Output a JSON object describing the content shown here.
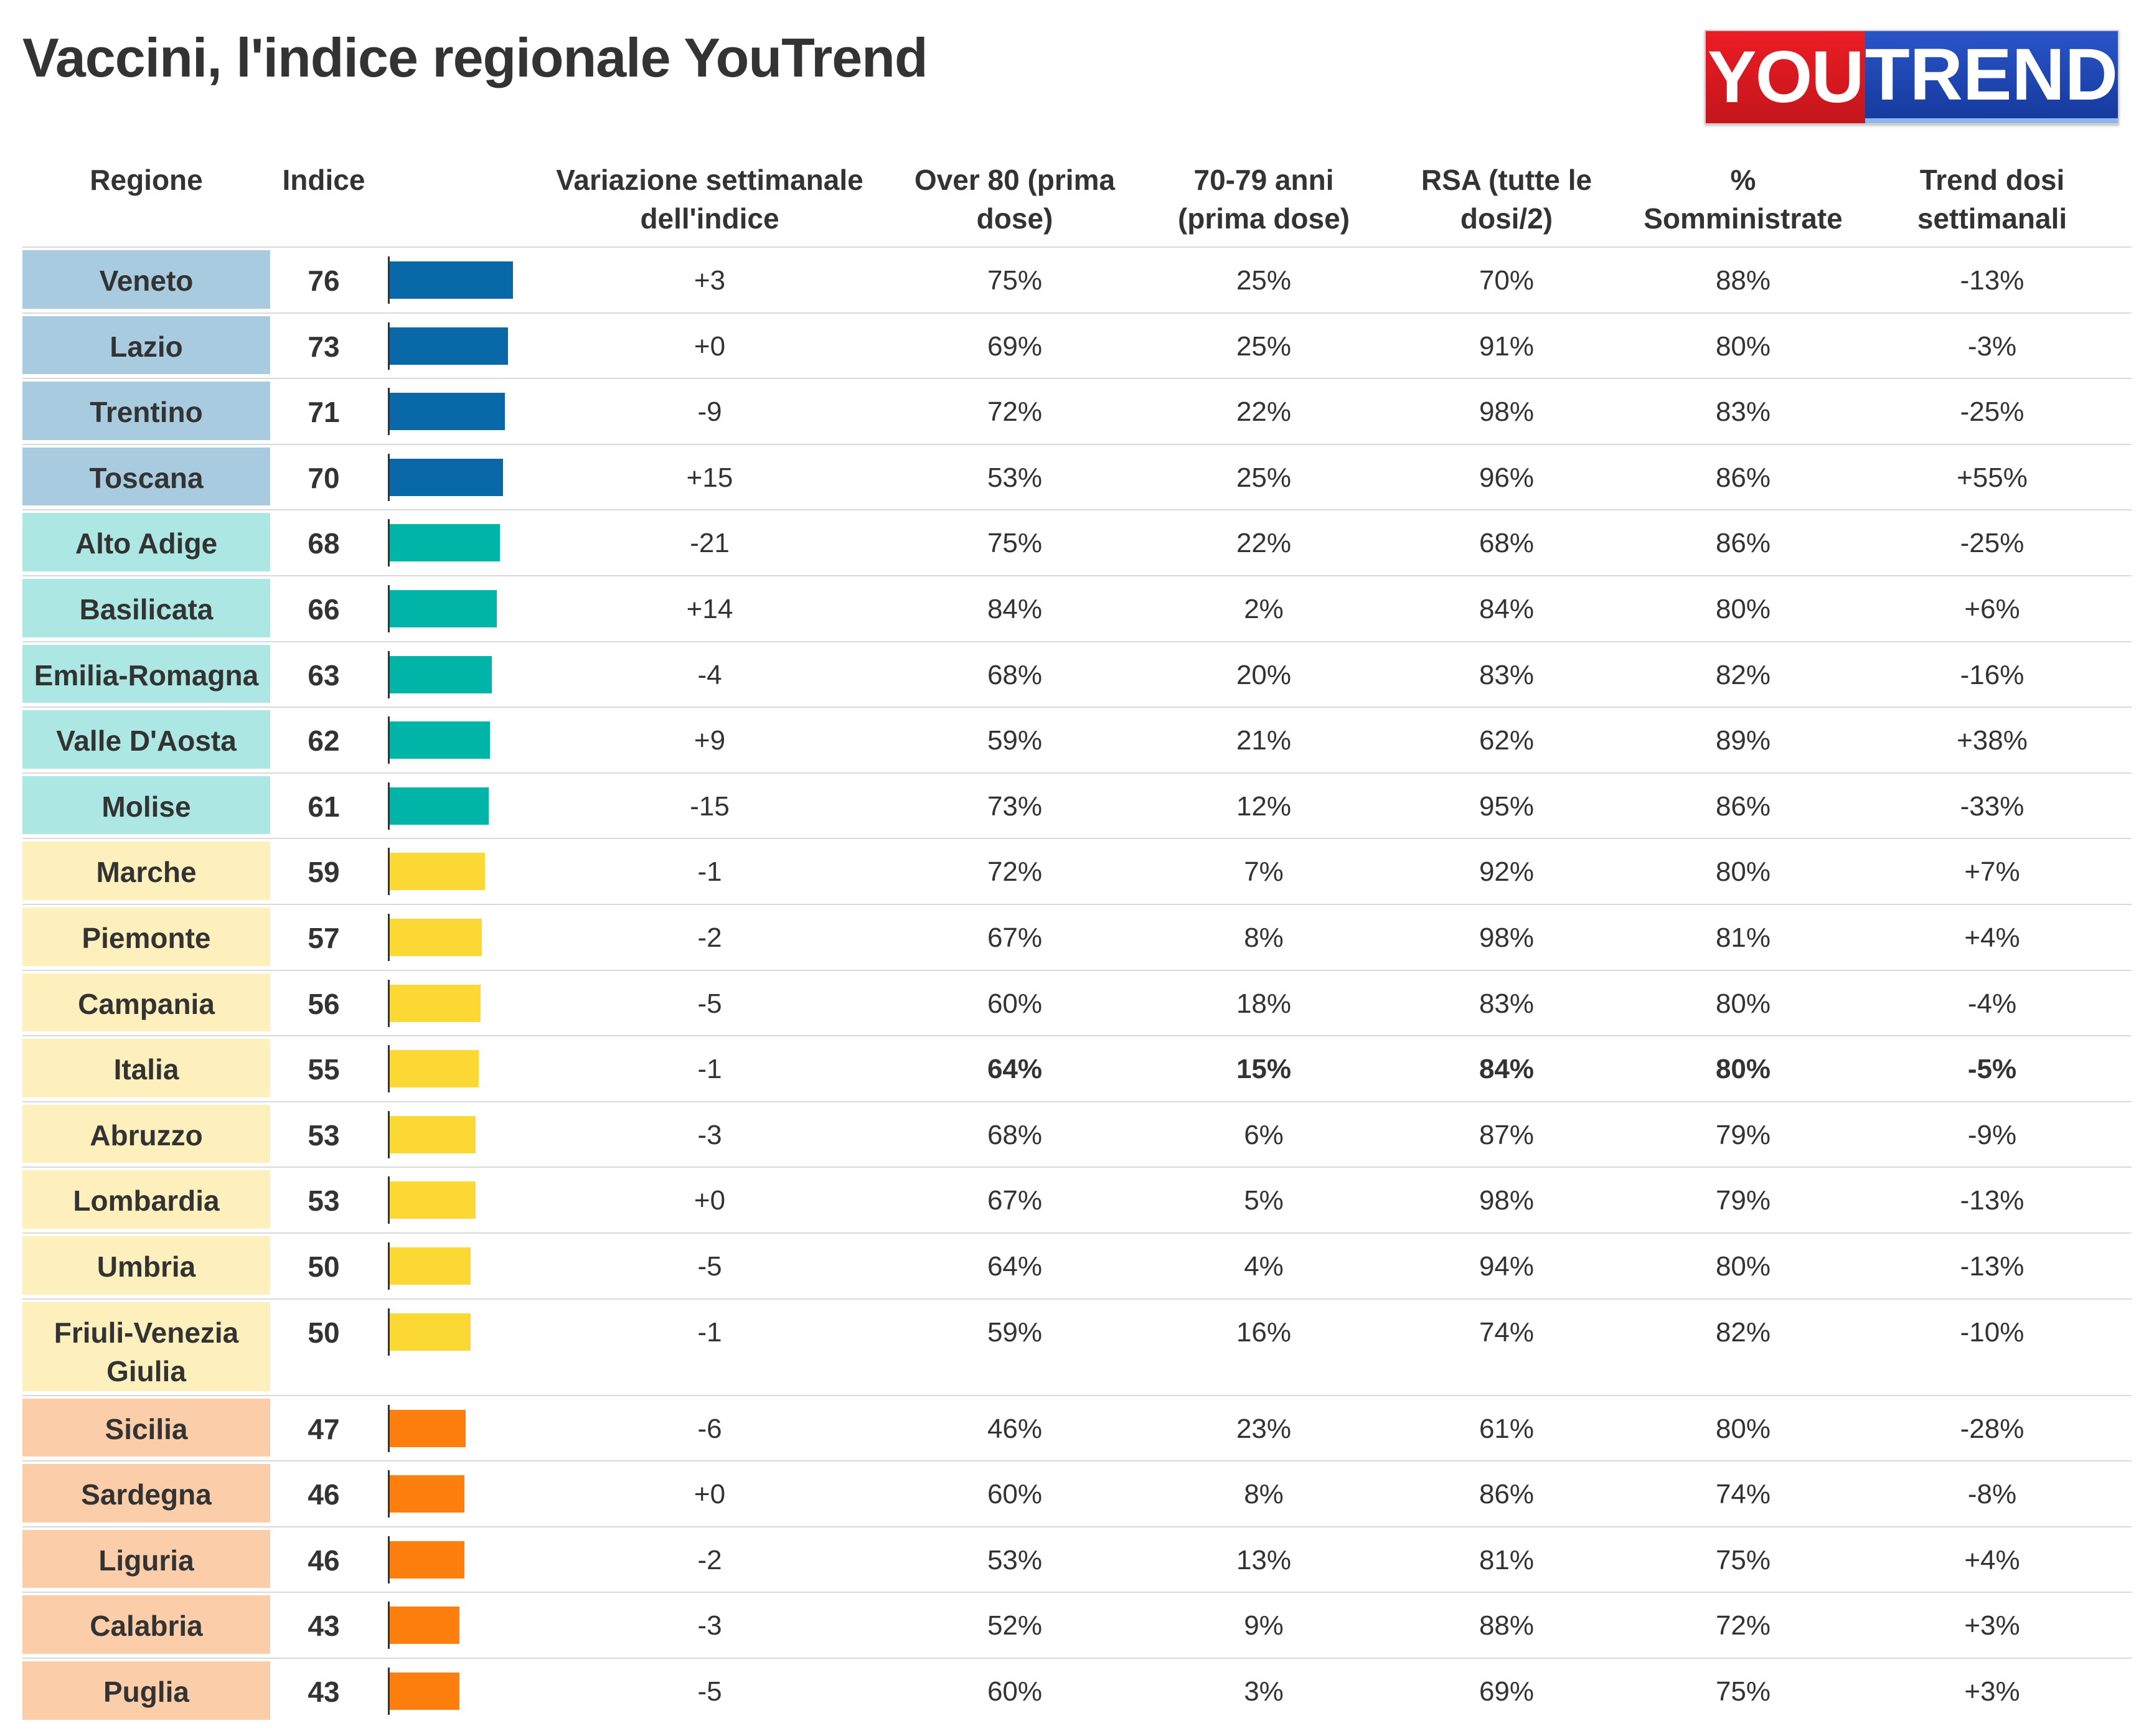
{
  "title": "Vaccini, l'indice regionale YouTrend",
  "logo": {
    "part1": "YOU",
    "part2": "TREND"
  },
  "headers": {
    "regione": "Regione",
    "indice": "Indice",
    "variazione": "Variazione settimanale\ndell'indice",
    "over80": "Over 80 (prima\ndose)",
    "anni7079": "70-79 anni\n(prima dose)",
    "rsa": "RSA (tutte le\ndosi/2)",
    "somministrate": "%\nSomministrate",
    "trend": "Trend dosi\nsettimanali"
  },
  "colors": {
    "tier1_bar": "#0868a8",
    "tier1_bg": "#a9cbe0",
    "tier2_bar": "#00b5a8",
    "tier2_bg": "#ace7e4",
    "tier3_bar": "#fcd835",
    "tier3_bg": "#fdf0bd",
    "tier4_bar": "#ff7f0e",
    "tier4_bg": "#fbcda8"
  },
  "chart_data": {
    "type": "table",
    "title": "Vaccini, l'indice regionale YouTrend",
    "columns": [
      "Regione",
      "Indice",
      "Variazione settimanale dell'indice",
      "Over 80 (prima dose)",
      "70-79 anni (prima dose)",
      "RSA (tutte le dosi/2)",
      "% Somministrate",
      "Trend dosi settimanali"
    ],
    "bar_max": 100,
    "rows": [
      {
        "regione": "Veneto",
        "indice": 76,
        "variazione": "+3",
        "over80": "75%",
        "anni7079": "25%",
        "rsa": "70%",
        "somministrate": "88%",
        "trend": "-13%",
        "tier": 1
      },
      {
        "regione": "Lazio",
        "indice": 73,
        "variazione": "+0",
        "over80": "69%",
        "anni7079": "25%",
        "rsa": "91%",
        "somministrate": "80%",
        "trend": "-3%",
        "tier": 1
      },
      {
        "regione": "Trentino",
        "indice": 71,
        "variazione": "-9",
        "over80": "72%",
        "anni7079": "22%",
        "rsa": "98%",
        "somministrate": "83%",
        "trend": "-25%",
        "tier": 1
      },
      {
        "regione": "Toscana",
        "indice": 70,
        "variazione": "+15",
        "over80": "53%",
        "anni7079": "25%",
        "rsa": "96%",
        "somministrate": "86%",
        "trend": "+55%",
        "tier": 1
      },
      {
        "regione": "Alto Adige",
        "indice": 68,
        "variazione": "-21",
        "over80": "75%",
        "anni7079": "22%",
        "rsa": "68%",
        "somministrate": "86%",
        "trend": "-25%",
        "tier": 2
      },
      {
        "regione": "Basilicata",
        "indice": 66,
        "variazione": "+14",
        "over80": "84%",
        "anni7079": "2%",
        "rsa": "84%",
        "somministrate": "80%",
        "trend": "+6%",
        "tier": 2
      },
      {
        "regione": "Emilia-Romagna",
        "indice": 63,
        "variazione": "-4",
        "over80": "68%",
        "anni7079": "20%",
        "rsa": "83%",
        "somministrate": "82%",
        "trend": "-16%",
        "tier": 2
      },
      {
        "regione": "Valle D'Aosta",
        "indice": 62,
        "variazione": "+9",
        "over80": "59%",
        "anni7079": "21%",
        "rsa": "62%",
        "somministrate": "89%",
        "trend": "+38%",
        "tier": 2
      },
      {
        "regione": "Molise",
        "indice": 61,
        "variazione": "-15",
        "over80": "73%",
        "anni7079": "12%",
        "rsa": "95%",
        "somministrate": "86%",
        "trend": "-33%",
        "tier": 2
      },
      {
        "regione": "Marche",
        "indice": 59,
        "variazione": "-1",
        "over80": "72%",
        "anni7079": "7%",
        "rsa": "92%",
        "somministrate": "80%",
        "trend": "+7%",
        "tier": 3
      },
      {
        "regione": "Piemonte",
        "indice": 57,
        "variazione": "-2",
        "over80": "67%",
        "anni7079": "8%",
        "rsa": "98%",
        "somministrate": "81%",
        "trend": "+4%",
        "tier": 3
      },
      {
        "regione": "Campania",
        "indice": 56,
        "variazione": "-5",
        "over80": "60%",
        "anni7079": "18%",
        "rsa": "83%",
        "somministrate": "80%",
        "trend": "-4%",
        "tier": 3
      },
      {
        "regione": "Italia",
        "indice": 55,
        "variazione": "-1",
        "over80": "64%",
        "anni7079": "15%",
        "rsa": "84%",
        "somministrate": "80%",
        "trend": "-5%",
        "tier": 3,
        "bold": true
      },
      {
        "regione": "Abruzzo",
        "indice": 53,
        "variazione": "-3",
        "over80": "68%",
        "anni7079": "6%",
        "rsa": "87%",
        "somministrate": "79%",
        "trend": "-9%",
        "tier": 3
      },
      {
        "regione": "Lombardia",
        "indice": 53,
        "variazione": "+0",
        "over80": "67%",
        "anni7079": "5%",
        "rsa": "98%",
        "somministrate": "79%",
        "trend": "-13%",
        "tier": 3
      },
      {
        "regione": "Umbria",
        "indice": 50,
        "variazione": "-5",
        "over80": "64%",
        "anni7079": "4%",
        "rsa": "94%",
        "somministrate": "80%",
        "trend": "-13%",
        "tier": 3
      },
      {
        "regione": "Friuli-Venezia Giulia",
        "indice": 50,
        "variazione": "-1",
        "over80": "59%",
        "anni7079": "16%",
        "rsa": "74%",
        "somministrate": "82%",
        "trend": "-10%",
        "tier": 3
      },
      {
        "regione": "Sicilia",
        "indice": 47,
        "variazione": "-6",
        "over80": "46%",
        "anni7079": "23%",
        "rsa": "61%",
        "somministrate": "80%",
        "trend": "-28%",
        "tier": 4
      },
      {
        "regione": "Sardegna",
        "indice": 46,
        "variazione": "+0",
        "over80": "60%",
        "anni7079": "8%",
        "rsa": "86%",
        "somministrate": "74%",
        "trend": "-8%",
        "tier": 4
      },
      {
        "regione": "Liguria",
        "indice": 46,
        "variazione": "-2",
        "over80": "53%",
        "anni7079": "13%",
        "rsa": "81%",
        "somministrate": "75%",
        "trend": "+4%",
        "tier": 4
      },
      {
        "regione": "Calabria",
        "indice": 43,
        "variazione": "-3",
        "over80": "52%",
        "anni7079": "9%",
        "rsa": "88%",
        "somministrate": "72%",
        "trend": "+3%",
        "tier": 4
      },
      {
        "regione": "Puglia",
        "indice": 43,
        "variazione": "-5",
        "over80": "60%",
        "anni7079": "3%",
        "rsa": "69%",
        "somministrate": "75%",
        "trend": "+3%",
        "tier": 4
      }
    ]
  }
}
